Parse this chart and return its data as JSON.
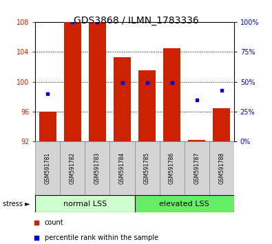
{
  "title": "GDS3868 / ILMN_1783336",
  "samples": [
    "GSM591781",
    "GSM591782",
    "GSM591783",
    "GSM591784",
    "GSM591785",
    "GSM591786",
    "GSM591787",
    "GSM591788"
  ],
  "bar_values": [
    96.0,
    108.0,
    108.0,
    103.3,
    101.5,
    104.5,
    92.2,
    96.5
  ],
  "percentile_values": [
    40,
    100,
    100,
    49,
    49,
    49,
    35,
    43
  ],
  "bar_color": "#cc2200",
  "percentile_color": "#0000cc",
  "ylim_left": [
    92,
    108
  ],
  "ylim_right": [
    0,
    100
  ],
  "yticks_left": [
    92,
    96,
    100,
    104,
    108
  ],
  "yticks_right": [
    0,
    25,
    50,
    75,
    100
  ],
  "ytick_labels_right": [
    "0%",
    "25%",
    "50%",
    "75%",
    "100%"
  ],
  "grid_yticks": [
    96,
    100,
    104
  ],
  "group1_label": "normal LSS",
  "group2_label": "elevated LSS",
  "group1_color": "#ccffcc",
  "group2_color": "#66ee66",
  "stress_label": "stress ►",
  "legend_count_label": "count",
  "legend_pct_label": "percentile rank within the sample",
  "bar_bottom": 92,
  "bar_width": 0.7,
  "label_bg_color": "#d4d4d4",
  "spine_color": "#000000",
  "title_fontsize": 10,
  "axis_fontsize": 7,
  "label_fontsize": 5.5,
  "group_fontsize": 8,
  "legend_fontsize": 7
}
